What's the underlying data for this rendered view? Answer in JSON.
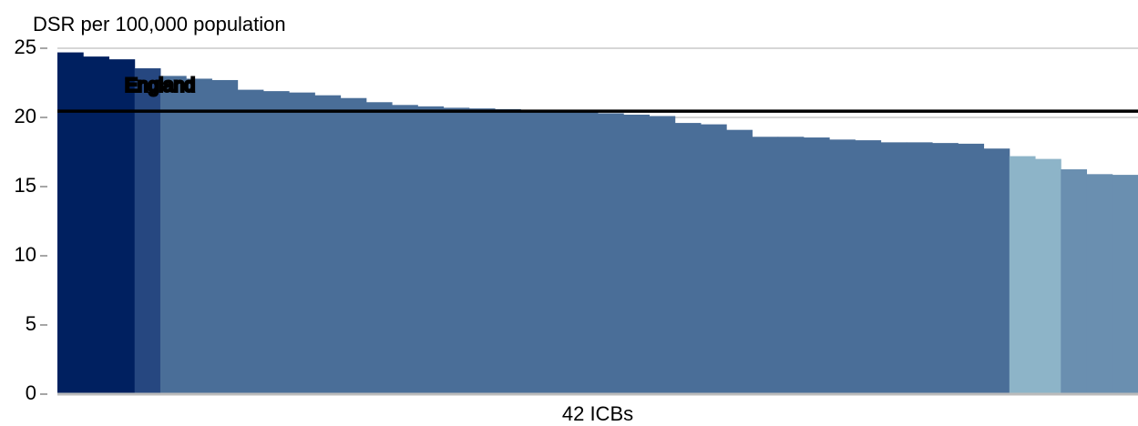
{
  "chart_data": {
    "type": "bar",
    "y_label": "DSR per 100,000 population",
    "x_label": "42 ICBs",
    "categories": [
      null,
      null,
      null,
      null,
      null,
      null,
      null,
      null,
      null,
      null,
      null,
      null,
      null,
      null,
      null,
      null,
      null,
      null,
      null,
      null,
      null,
      null,
      null,
      null,
      null,
      null,
      null,
      null,
      null,
      null,
      null,
      null,
      null,
      null,
      null,
      null,
      null,
      null,
      null,
      null,
      null,
      null
    ],
    "values": [
      24.7,
      24.4,
      24.2,
      23.55,
      23.0,
      22.8,
      22.7,
      22.0,
      21.9,
      21.8,
      21.6,
      21.4,
      21.1,
      20.9,
      20.8,
      20.7,
      20.65,
      20.6,
      20.55,
      20.5,
      20.4,
      20.3,
      20.2,
      20.1,
      19.6,
      19.5,
      19.1,
      18.6,
      18.6,
      18.55,
      18.4,
      18.35,
      18.2,
      18.2,
      18.15,
      18.1,
      17.75,
      17.2,
      17.0,
      16.25,
      15.9,
      15.85
    ],
    "colors": [
      "#002060",
      "#002060",
      "#002060",
      "#264780",
      "#4a6e98",
      "#4a6e98",
      "#4a6e98",
      "#4a6e98",
      "#4a6e98",
      "#4a6e98",
      "#4a6e98",
      "#4a6e98",
      "#4a6e98",
      "#4a6e98",
      "#4a6e98",
      "#4a6e98",
      "#4a6e98",
      "#4a6e98",
      "#4a6e98",
      "#4a6e98",
      "#4a6e98",
      "#4a6e98",
      "#4a6e98",
      "#4a6e98",
      "#4a6e98",
      "#4a6e98",
      "#4a6e98",
      "#4a6e98",
      "#4a6e98",
      "#4a6e98",
      "#4a6e98",
      "#4a6e98",
      "#4a6e98",
      "#4a6e98",
      "#4a6e98",
      "#4a6e98",
      "#4a6e98",
      "#8db4c8",
      "#8db4c8",
      "#6a8fb0",
      "#6a8fb0",
      "#6a8fb0"
    ],
    "reference_line": {
      "label": "England",
      "value": 20.45
    },
    "ylim": [
      0,
      25
    ],
    "yticks": [
      0,
      5,
      10,
      15,
      20,
      25
    ],
    "grid": true
  }
}
